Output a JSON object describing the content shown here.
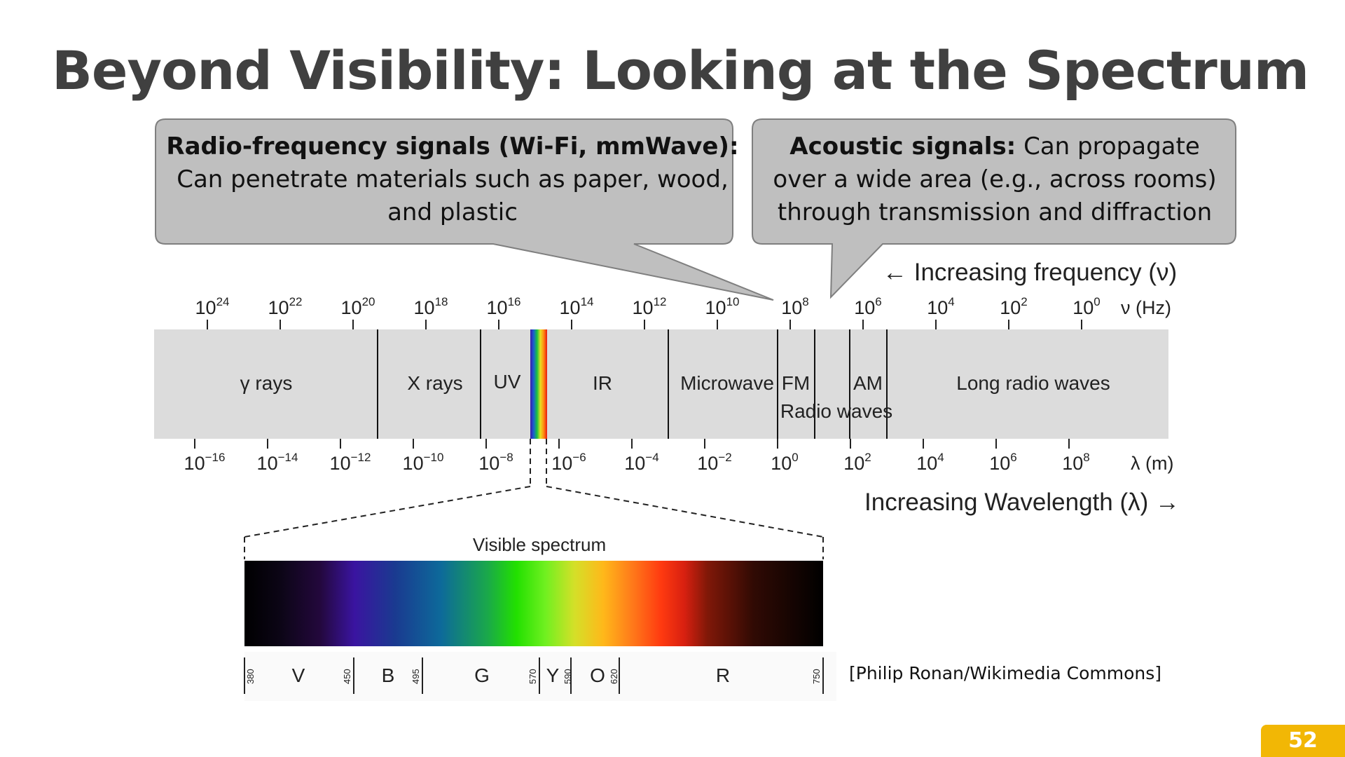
{
  "title": "Beyond Visibility: Looking at the Spectrum",
  "callouts": {
    "rf": {
      "heading": "Radio-frequency signals (Wi-Fi, mmWave):",
      "body": "Can penetrate materials such as paper, wood, and plastic"
    },
    "acoustic": {
      "heading": "Acoustic signals:",
      "body": "Can propagate over a wide area (e.g., across rooms) through transmission and diffraction"
    }
  },
  "spectrum": {
    "frequency_arrow": "← Increasing frequency (ν)",
    "frequency_unit": "ν (Hz)",
    "frequency_ticks": [
      {
        "base": "10",
        "exp": "24"
      },
      {
        "base": "10",
        "exp": "22"
      },
      {
        "base": "10",
        "exp": "20"
      },
      {
        "base": "10",
        "exp": "18"
      },
      {
        "base": "10",
        "exp": "16"
      },
      {
        "base": "10",
        "exp": "14"
      },
      {
        "base": "10",
        "exp": "12"
      },
      {
        "base": "10",
        "exp": "10"
      },
      {
        "base": "10",
        "exp": "8"
      },
      {
        "base": "10",
        "exp": "6"
      },
      {
        "base": "10",
        "exp": "4"
      },
      {
        "base": "10",
        "exp": "2"
      },
      {
        "base": "10",
        "exp": "0"
      }
    ],
    "wavelength_unit": "λ (m)",
    "wavelength_ticks": [
      {
        "base": "10",
        "exp": "−16"
      },
      {
        "base": "10",
        "exp": "−14"
      },
      {
        "base": "10",
        "exp": "−12"
      },
      {
        "base": "10",
        "exp": "−10"
      },
      {
        "base": "10",
        "exp": "−8"
      },
      {
        "base": "10",
        "exp": "−6"
      },
      {
        "base": "10",
        "exp": "−4"
      },
      {
        "base": "10",
        "exp": "−2"
      },
      {
        "base": "10",
        "exp": "0"
      },
      {
        "base": "10",
        "exp": "2"
      },
      {
        "base": "10",
        "exp": "4"
      },
      {
        "base": "10",
        "exp": "6"
      },
      {
        "base": "10",
        "exp": "8"
      }
    ],
    "wavelength_arrow": "Increasing Wavelength (λ) →",
    "bands": {
      "gamma": "γ rays",
      "xray": "X rays",
      "uv": "UV",
      "ir": "IR",
      "microwave": "Microwave",
      "fm": "FM",
      "am": "AM",
      "long_radio": "Long radio waves",
      "radio_waves": "Radio waves"
    }
  },
  "visible": {
    "title": "Visible spectrum",
    "boundaries": [
      "380",
      "450",
      "495",
      "570",
      "590",
      "620",
      "750"
    ],
    "colors": [
      "V",
      "B",
      "G",
      "Y",
      "O",
      "R"
    ]
  },
  "credit": "[Philip Ronan/Wikimedia Commons]",
  "page_number": "52"
}
